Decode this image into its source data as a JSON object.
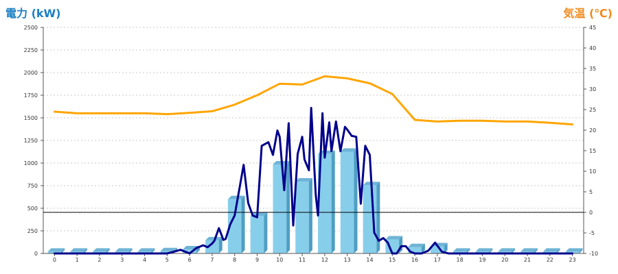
{
  "chart_data": {
    "type": "bar",
    "left_axis_label": "電力 (kW)",
    "right_axis_label": "気温 (℃)",
    "left_ylim": [
      0,
      2500
    ],
    "left_ticks": [
      "0",
      "250",
      "500",
      "750",
      "1000",
      "1250",
      "1500",
      "1750",
      "2000",
      "2250",
      "2500"
    ],
    "right_ylim": [
      -10,
      45
    ],
    "right_ticks": [
      "-10",
      "-5",
      "0",
      "5",
      "10",
      "15",
      "20",
      "25",
      "30",
      "35",
      "40",
      "45"
    ],
    "categories": [
      "0",
      "1",
      "2",
      "3",
      "4",
      "5",
      "6",
      "7",
      "8",
      "9",
      "10",
      "11",
      "12",
      "13",
      "14",
      "15",
      "16",
      "17",
      "18",
      "19",
      "20",
      "21",
      "22",
      "23"
    ],
    "grid": true,
    "series": [
      {
        "kind": "bar",
        "axis": "left",
        "color": "#87ceeb",
        "values": [
          20,
          20,
          20,
          20,
          20,
          25,
          45,
          145,
          600,
          415,
          985,
          795,
          1100,
          1125,
          755,
          155,
          70,
          80,
          20,
          20,
          20,
          20,
          20,
          20
        ]
      },
      {
        "kind": "line",
        "axis": "left",
        "color": "#00008b",
        "x": [
          0,
          1,
          2,
          3,
          4,
          5,
          5.3,
          5.6,
          6.0,
          6.3,
          6.6,
          6.8,
          7.0,
          7.1,
          7.3,
          7.5,
          7.6,
          7.8,
          8.0,
          8.2,
          8.4,
          8.6,
          8.8,
          9.0,
          9.2,
          9.5,
          9.7,
          9.9,
          10.0,
          10.2,
          10.4,
          10.6,
          10.8,
          11.0,
          11.1,
          11.3,
          11.4,
          11.6,
          11.7,
          11.9,
          12.0,
          12.2,
          12.3,
          12.5,
          12.7,
          12.9,
          13.0,
          13.2,
          13.4,
          13.6,
          13.8,
          14.0,
          14.2,
          14.4,
          14.6,
          14.8,
          15.0,
          15.2,
          15.4,
          15.6,
          15.8,
          16.0,
          16.3,
          16.6,
          16.9,
          17.2,
          17.5,
          18,
          19,
          20,
          21,
          22,
          23
        ],
        "values": [
          0,
          0,
          0,
          0,
          0,
          0,
          20,
          40,
          0,
          60,
          90,
          70,
          110,
          140,
          280,
          150,
          160,
          320,
          420,
          700,
          980,
          560,
          420,
          400,
          1190,
          1230,
          1090,
          1360,
          1290,
          700,
          1440,
          310,
          1100,
          1290,
          1040,
          920,
          1610,
          650,
          420,
          1550,
          1060,
          1450,
          1130,
          1460,
          1130,
          1400,
          1370,
          1300,
          1290,
          550,
          1190,
          1090,
          230,
          140,
          170,
          120,
          0,
          0,
          80,
          80,
          20,
          0,
          0,
          30,
          120,
          20,
          0,
          0,
          0,
          0,
          0,
          0,
          0
        ]
      },
      {
        "kind": "line",
        "axis": "right",
        "color": "#ffa500",
        "values": [
          24.5,
          24.1,
          24.1,
          24.1,
          24.1,
          23.9,
          24.2,
          24.6,
          26.2,
          28.5,
          31.3,
          31.1,
          33.1,
          32.6,
          31.4,
          28.8,
          22.5,
          22.1,
          22.3,
          22.3,
          22.1,
          22.1,
          21.8,
          21.4
        ]
      }
    ],
    "reference_lines": [
      {
        "axis": "left",
        "value": 455,
        "color": "#000000"
      }
    ]
  }
}
